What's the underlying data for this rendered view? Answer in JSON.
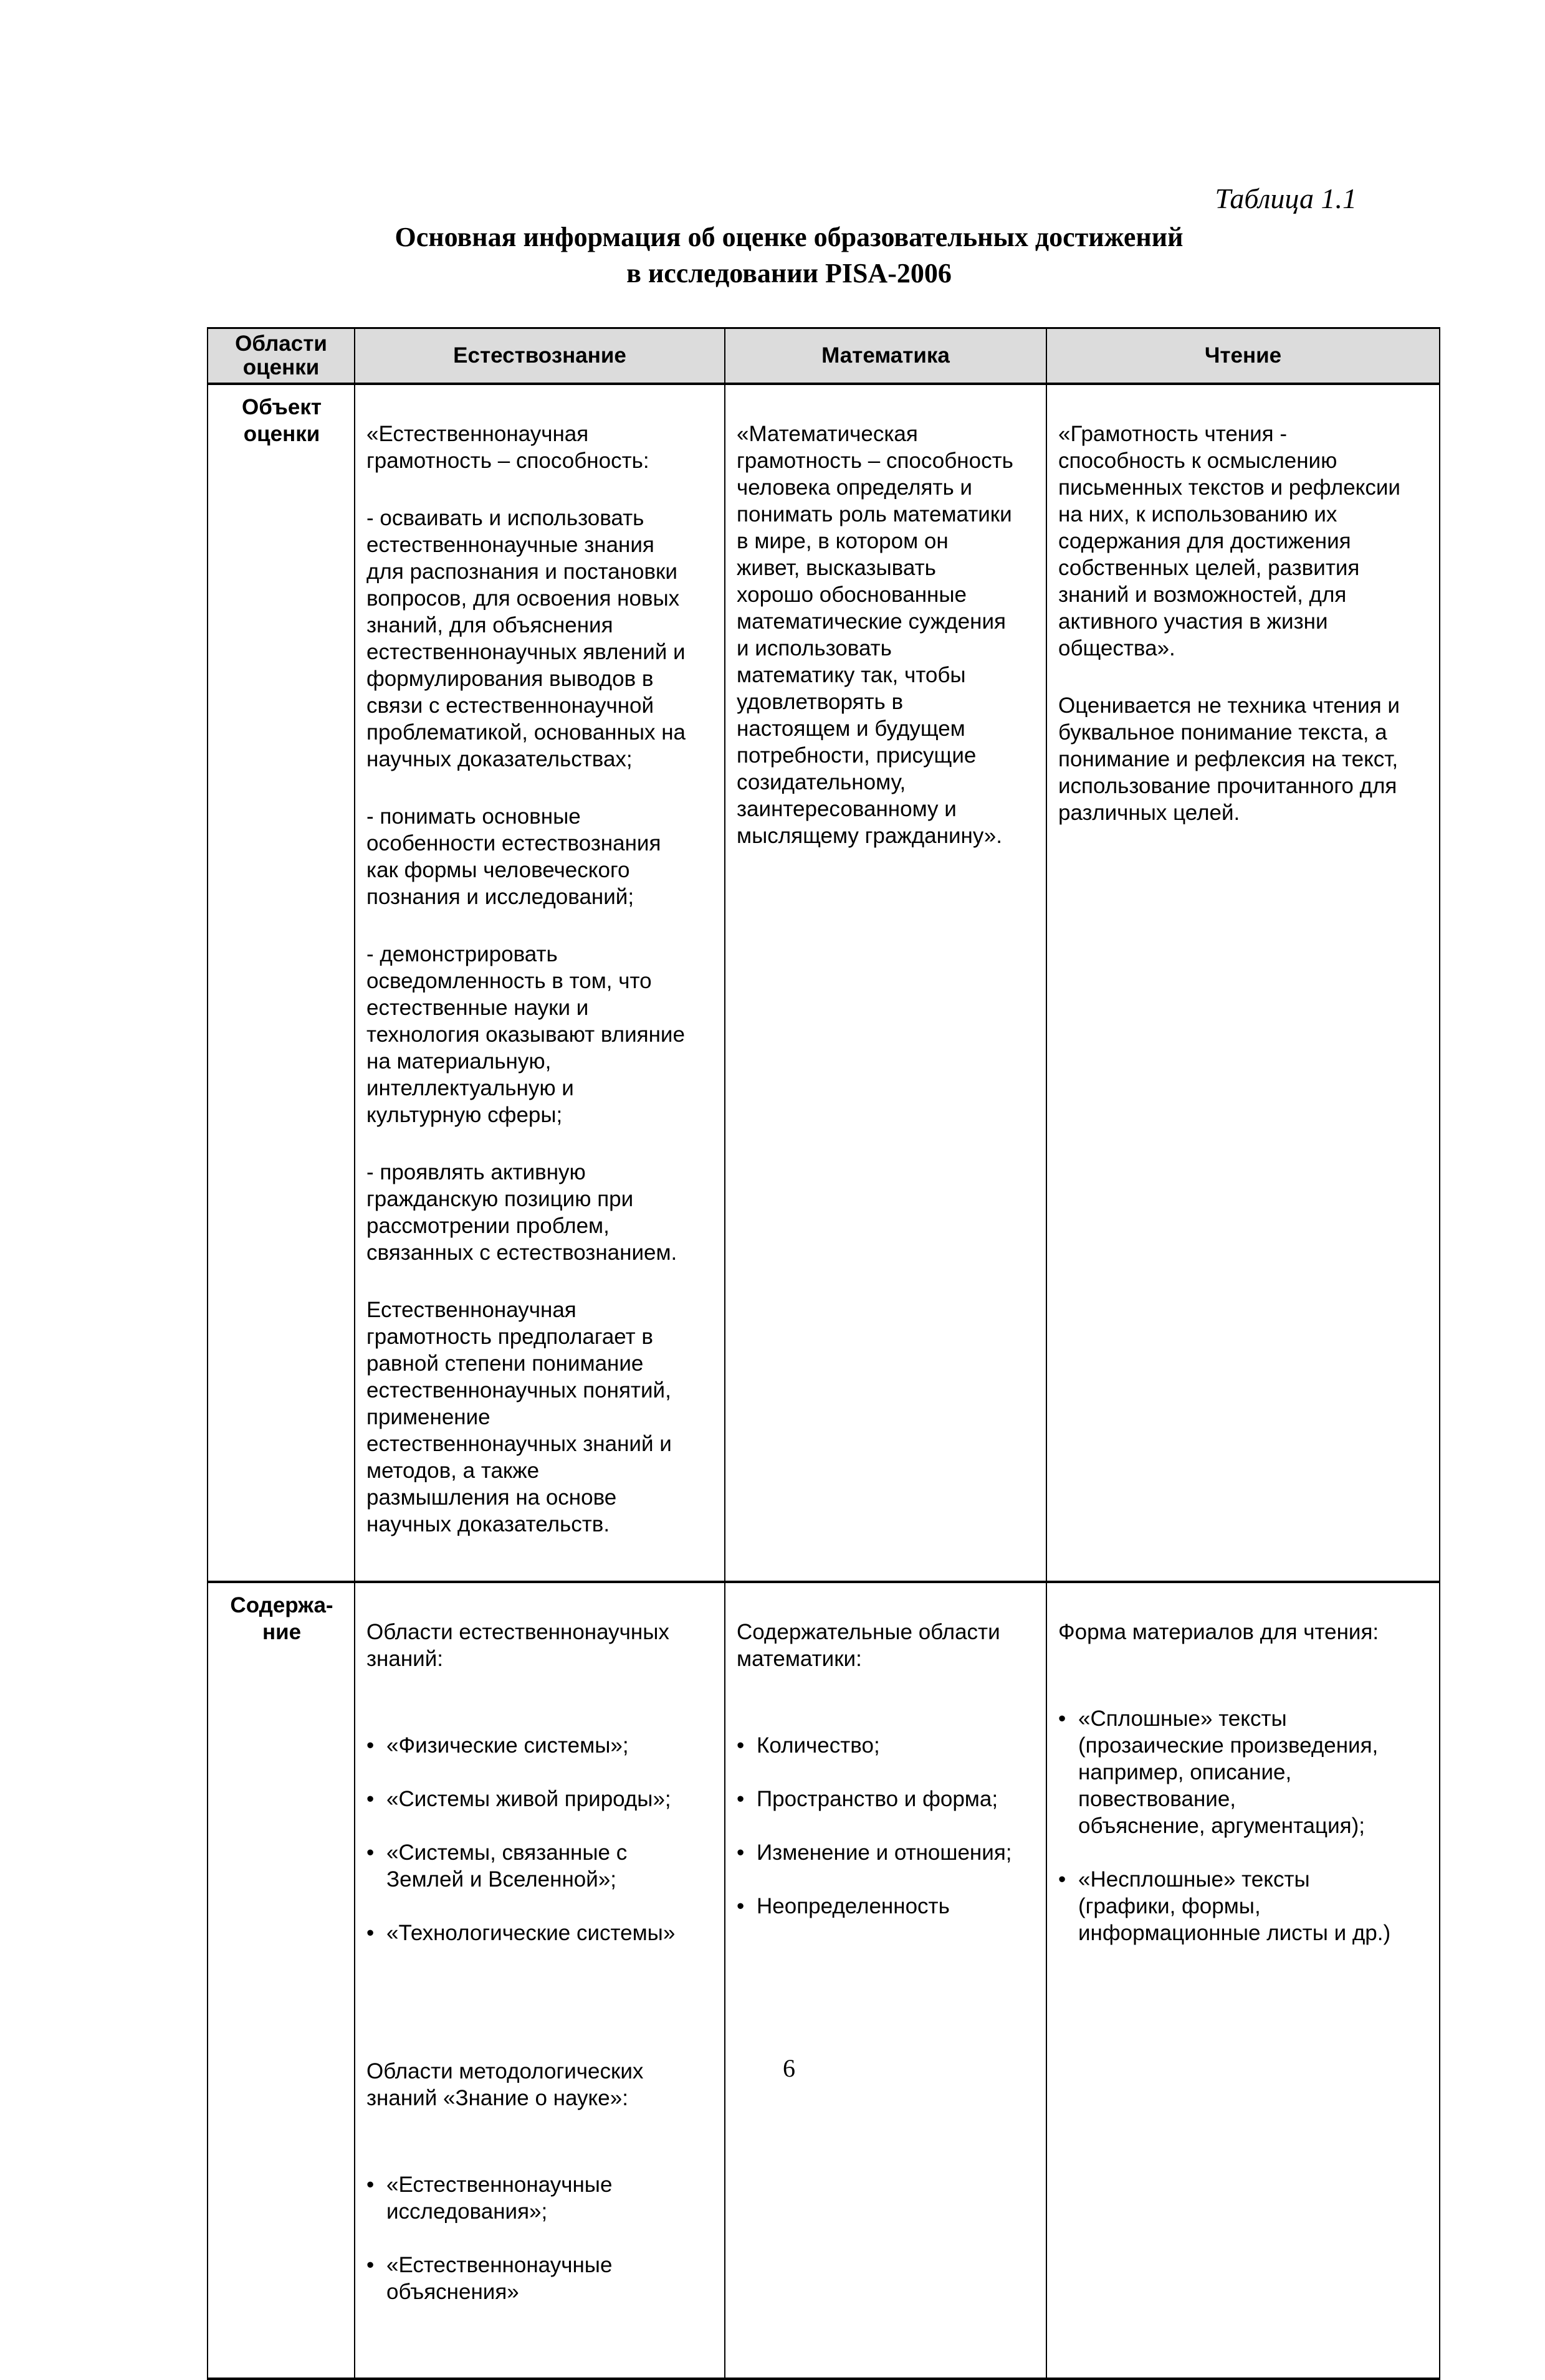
{
  "caption": "Таблица 1.1",
  "title": "Основная информация об оценке образовательных достижений\nв исследовании PISA-2006",
  "table": {
    "headers": [
      "Области\nоценки",
      "Естествознание",
      "Математика",
      "Чтение"
    ],
    "rows": [
      {
        "label": "Объект\nоценки",
        "science": [
          "«Естественнонаучная\nграмотность – способность:",
          "- осваивать и использовать\nестественнонаучные знания\nдля распознания и постановки\nвопросов, для освоения новых\nзнаний, для объяснения\nестественнонаучных явлений и\nформулирования выводов в\nсвязи с естественнонаучной\nпроблематикой, основанных на\nнаучных доказательствах;",
          "- понимать основные\nособенности естествознания\nкак формы человеческого\nпознания и исследований;",
          "- демонстрировать\nосведомленность в том, что\nестественные науки и\nтехнология оказывают влияние\nна материальную,\nинтеллектуальную и\nкультурную сферы;",
          "- проявлять активную\nгражданскую позицию при\nрассмотрении проблем,\nсвязанных с естествознанием.",
          "Естественнонаучная\nграмотность предполагает в\nравной степени понимание\nестественнонаучных понятий,\nприменение\nестественнонаучных знаний и\nметодов, а также\nразмышления на основе\nнаучных доказательств."
        ],
        "math": [
          "«Математическая\nграмотность – способность\nчеловека определять и\nпонимать роль математики\nв мире, в котором он\nживет, высказывать\nхорошо обоснованные\nматематические суждения\nи использовать\nматематику так, чтобы\nудовлетворять в\nнастоящем и будущем\nпотребности, присущие\nсозидательному,\nзаинтересованному и\nмыслящему гражданину»."
        ],
        "reading": [
          "«Грамотность чтения -\nспособность к осмыслению\nписьменных текстов и рефлексии\nна них, к использованию их\nсодержания для достижения\nсобственных целей, развития\nзнаний и возможностей, для\nактивного участия в жизни\nобщества».",
          "Оценивается не техника чтения и\nбуквальное понимание текста, а\nпонимание и рефлексия на текст,\nиспользование прочитанного для\nразличных целей."
        ]
      },
      {
        "label": "Содержа-\nние",
        "science": {
          "intro1": "Области естественнонаучных\nзнаний:",
          "list1": [
            "«Физические системы»;",
            "«Системы живой природы»;",
            "«Системы, связанные с\nЗемлей и Вселенной»;",
            "«Технологические системы»"
          ],
          "intro2": "Области методологических\nзнаний «Знание о науке»:",
          "list2": [
            "«Естественнонаучные\nисследования»;",
            "«Естественнонаучные\nобъяснения»"
          ]
        },
        "math": {
          "intro": "Содержательные области\nматематики:",
          "list": [
            "Количество;",
            "Пространство и форма;",
            "Изменение и отношения;",
            "Неопределенность"
          ]
        },
        "reading": {
          "intro": "Форма материалов для чтения:",
          "list": [
            "«Сплошные» тексты\n(прозаические произведения,\nнапример, описание,\nповествование,\nобъяснение, аргументация);",
            "«Несплошные» тексты\n(графики, формы,\nинформационные листы и др.)"
          ]
        }
      }
    ]
  },
  "page_number": "6"
}
